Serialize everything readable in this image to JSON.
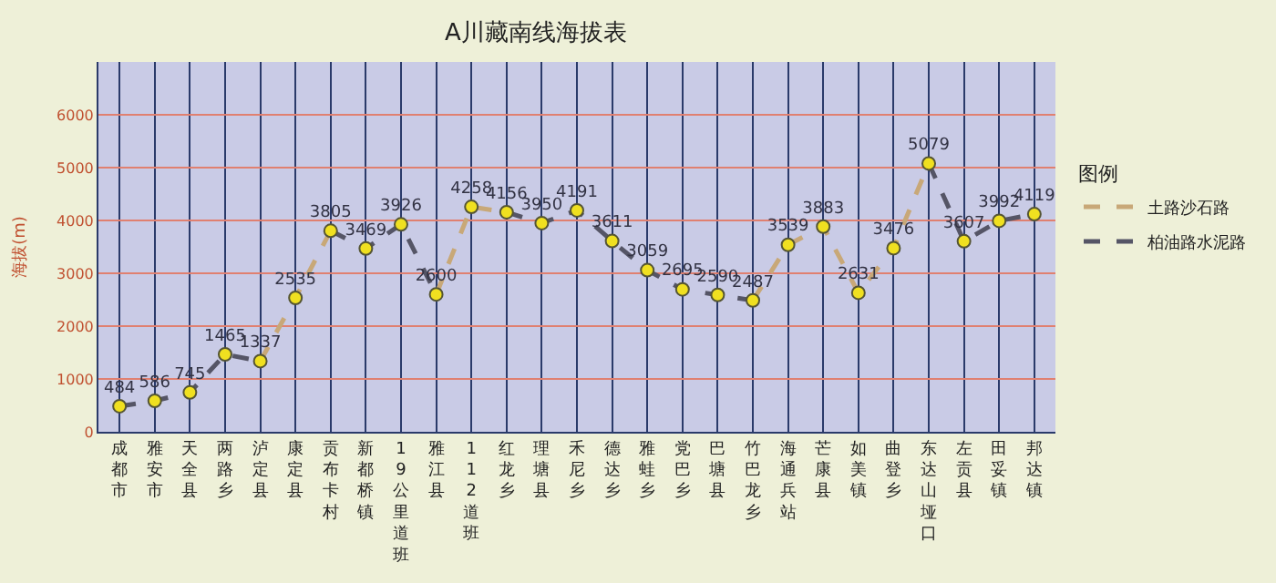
{
  "chart_data": {
    "type": "line",
    "title": "A川藏南线海拔表",
    "ylabel": "海拔(m)",
    "legend_title": "图例",
    "categories": [
      "成都市",
      "雅安市",
      "天全县",
      "两路乡",
      "泸定县",
      "康定县",
      "贡布卡村",
      "新都桥镇",
      "19公里道班",
      "雅江县",
      "112道班",
      "红龙乡",
      "理塘县",
      "禾尼乡",
      "德达乡",
      "雅蛙乡",
      "党巴乡",
      "巴塘县",
      "竹巴龙乡",
      "海通兵站",
      "芒康县",
      "如美镇",
      "曲登乡",
      "东达山垭口",
      "左贡县",
      "田妥镇",
      "邦达镇"
    ],
    "series": [
      {
        "name": "土路沙石路",
        "color": "#c8a878",
        "line_style": "dashed",
        "marker": "none",
        "values": [
          null,
          null,
          null,
          null,
          1337,
          2535,
          3805,
          null,
          null,
          2600,
          4258,
          4156,
          null,
          null,
          null,
          null,
          null,
          null,
          2487,
          3539,
          3883,
          2631,
          3476,
          5079,
          null,
          null,
          null
        ]
      },
      {
        "name": "柏油路水泥路",
        "color": "#555566",
        "line_style": "dashed",
        "marker": "none",
        "values": [
          484,
          586,
          745,
          1465,
          1337,
          null,
          3805,
          3469,
          3926,
          2600,
          null,
          4156,
          3950,
          4191,
          3611,
          3059,
          2695,
          2590,
          2487,
          null,
          null,
          null,
          null,
          5079,
          3607,
          3992,
          4119
        ]
      },
      {
        "type": "scatter",
        "color": "#f0e020",
        "marker": "circle",
        "data_labels": true,
        "values": [
          484,
          586,
          745,
          1465,
          1337,
          2535,
          3805,
          3469,
          3926,
          2600,
          4258,
          4156,
          3950,
          4191,
          3611,
          3059,
          2695,
          2590,
          2487,
          3539,
          3883,
          2631,
          3476,
          5079,
          3607,
          3992,
          4119
        ]
      }
    ],
    "ylim": [
      0,
      7000
    ],
    "yticks": [
      0,
      1000,
      2000,
      3000,
      4000,
      5000,
      6000
    ],
    "grid": true,
    "legend": "right"
  }
}
